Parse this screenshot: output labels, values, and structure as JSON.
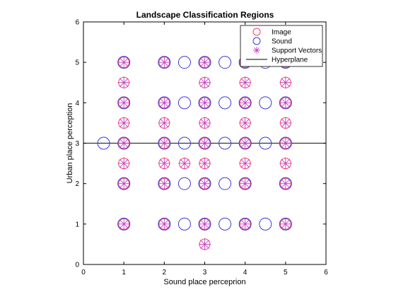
{
  "chart_data": {
    "type": "scatter",
    "title": "Landscape Classification Regions",
    "xlabel": "Sound place perceprion",
    "ylabel": "Urban place perception",
    "xlim": [
      0,
      6
    ],
    "ylim": [
      0,
      6
    ],
    "xticks": [
      0,
      1,
      2,
      3,
      4,
      5,
      6
    ],
    "yticks": [
      0,
      1,
      2,
      3,
      4,
      5,
      6
    ],
    "grid": false,
    "legend": {
      "location": "top-right",
      "entries": [
        {
          "label": "Image",
          "marker": "circle",
          "color": "#ff3b6b"
        },
        {
          "label": "Sound",
          "marker": "circle",
          "color": "#3b3bd8"
        },
        {
          "label": "Support Vectors",
          "marker": "asterisk",
          "color": "#c040c0"
        },
        {
          "label": "Hyperplane",
          "marker": "line",
          "color": "#333333"
        }
      ]
    },
    "series": [
      {
        "name": "Image",
        "color": "#ff3b6b",
        "points": [
          [
            1,
            5
          ],
          [
            2,
            5
          ],
          [
            3,
            5
          ],
          [
            4,
            5
          ],
          [
            5,
            5
          ],
          [
            1,
            4.5
          ],
          [
            3,
            4.5
          ],
          [
            4,
            4.5
          ],
          [
            5,
            4.5
          ],
          [
            1,
            4
          ],
          [
            2,
            4
          ],
          [
            3,
            4
          ],
          [
            4,
            4
          ],
          [
            5,
            4
          ],
          [
            1,
            3.5
          ],
          [
            2,
            3.5
          ],
          [
            3,
            3.5
          ],
          [
            4,
            3.5
          ],
          [
            5,
            3.5
          ],
          [
            1,
            3
          ],
          [
            2,
            3
          ],
          [
            3,
            3
          ],
          [
            4,
            3
          ],
          [
            5,
            3
          ],
          [
            1,
            2.5
          ],
          [
            2,
            2.5
          ],
          [
            2.5,
            2.5
          ],
          [
            3,
            2.5
          ],
          [
            4,
            2.5
          ],
          [
            5,
            2.5
          ],
          [
            1,
            2
          ],
          [
            2,
            2
          ],
          [
            3,
            2
          ],
          [
            4,
            2
          ],
          [
            5,
            2
          ],
          [
            1,
            1
          ],
          [
            2,
            1
          ],
          [
            3,
            1
          ],
          [
            4,
            1
          ],
          [
            5,
            1
          ],
          [
            3,
            0.5
          ]
        ]
      },
      {
        "name": "Sound",
        "color": "#3b3bd8",
        "points": [
          [
            1,
            5
          ],
          [
            2,
            5
          ],
          [
            2.5,
            5
          ],
          [
            3,
            5
          ],
          [
            3.5,
            5
          ],
          [
            4,
            5
          ],
          [
            4.5,
            5
          ],
          [
            5,
            5
          ],
          [
            1,
            4
          ],
          [
            2,
            4
          ],
          [
            2.5,
            4
          ],
          [
            3,
            4
          ],
          [
            3.5,
            4
          ],
          [
            4,
            4
          ],
          [
            4.5,
            4
          ],
          [
            5,
            4
          ],
          [
            0.5,
            3
          ],
          [
            1,
            3
          ],
          [
            2,
            3
          ],
          [
            2.5,
            3
          ],
          [
            3,
            3
          ],
          [
            3.5,
            3
          ],
          [
            4,
            3
          ],
          [
            4.5,
            3
          ],
          [
            5,
            3
          ],
          [
            1,
            2
          ],
          [
            2,
            2
          ],
          [
            2.5,
            2
          ],
          [
            3,
            2
          ],
          [
            3.5,
            2
          ],
          [
            4,
            2
          ],
          [
            5,
            2
          ],
          [
            1,
            1
          ],
          [
            2,
            1
          ],
          [
            2.5,
            1
          ],
          [
            3,
            1
          ],
          [
            3.5,
            1
          ],
          [
            4,
            1
          ],
          [
            4.5,
            1
          ],
          [
            5,
            1
          ]
        ]
      },
      {
        "name": "Support Vectors",
        "color": "#c040c0",
        "points": [
          [
            1,
            5
          ],
          [
            2,
            5
          ],
          [
            3,
            5
          ],
          [
            4,
            5
          ],
          [
            5,
            5
          ],
          [
            1,
            4.5
          ],
          [
            3,
            4.5
          ],
          [
            4,
            4.5
          ],
          [
            5,
            4.5
          ],
          [
            1,
            4
          ],
          [
            2,
            4
          ],
          [
            3,
            4
          ],
          [
            4,
            4
          ],
          [
            5,
            4
          ],
          [
            1,
            3.5
          ],
          [
            2,
            3.5
          ],
          [
            3,
            3.5
          ],
          [
            4,
            3.5
          ],
          [
            5,
            3.5
          ],
          [
            1,
            3
          ],
          [
            2,
            3
          ],
          [
            3,
            3
          ],
          [
            4,
            3
          ],
          [
            5,
            3
          ],
          [
            1,
            2.5
          ],
          [
            2,
            2.5
          ],
          [
            2.5,
            2.5
          ],
          [
            3,
            2.5
          ],
          [
            4,
            2.5
          ],
          [
            5,
            2.5
          ],
          [
            1,
            2
          ],
          [
            2,
            2
          ],
          [
            3,
            2
          ],
          [
            4,
            2
          ],
          [
            5,
            2
          ],
          [
            1,
            1
          ],
          [
            2,
            1
          ],
          [
            3,
            1
          ],
          [
            4,
            1
          ],
          [
            5,
            1
          ],
          [
            3,
            0.5
          ]
        ]
      },
      {
        "name": "Hyperplane",
        "color": "#333333",
        "line": [
          [
            0,
            3
          ],
          [
            6,
            3
          ]
        ]
      }
    ]
  }
}
